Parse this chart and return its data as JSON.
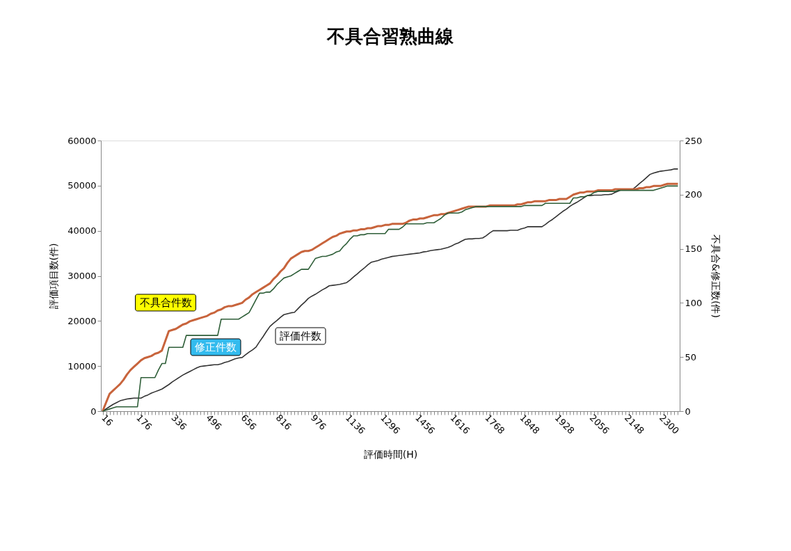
{
  "chart_data": {
    "type": "line",
    "title": "不具合習熟曲線",
    "xlabel": "評価時間(H)",
    "ylabel": "評価項目数(件)",
    "y2label": "不具合&修正数(件)",
    "categories": [
      "16",
      null,
      null,
      null,
      null,
      null,
      null,
      null,
      null,
      null,
      "176",
      null,
      null,
      null,
      null,
      null,
      null,
      null,
      null,
      null,
      "336",
      null,
      null,
      null,
      null,
      null,
      null,
      null,
      null,
      null,
      "496",
      null,
      null,
      null,
      null,
      null,
      null,
      null,
      null,
      null,
      "656",
      null,
      null,
      null,
      null,
      null,
      null,
      null,
      null,
      null,
      "816",
      null,
      null,
      null,
      null,
      null,
      null,
      null,
      null,
      null,
      "976",
      null,
      null,
      null,
      null,
      null,
      null,
      null,
      null,
      null,
      "1136",
      null,
      null,
      null,
      null,
      null,
      null,
      null,
      null,
      null,
      "1296",
      null,
      null,
      null,
      null,
      null,
      null,
      null,
      null,
      null,
      "1456",
      null,
      null,
      null,
      null,
      null,
      null,
      null,
      null,
      null,
      "1616",
      null,
      null,
      null,
      null,
      null,
      null,
      null,
      null,
      null,
      "1768",
      null,
      null,
      null,
      null,
      null,
      null,
      null,
      null,
      null,
      "1848",
      null,
      null,
      null,
      null,
      null,
      null,
      null,
      null,
      null,
      "1928",
      null,
      null,
      null,
      null,
      null,
      null,
      null,
      null,
      null,
      "2056",
      null,
      null,
      null,
      null,
      null,
      null,
      null,
      null,
      null,
      "2148",
      null,
      null,
      null,
      null,
      null,
      null,
      null,
      null,
      null,
      "2300",
      null,
      null,
      null,
      null,
      null
    ],
    "series": [
      {
        "name": "評価件数",
        "color": "#333333",
        "axis": "y",
        "values": [
          0,
          500,
          1000,
          1500,
          1900,
          2300,
          2500,
          2700,
          2800,
          2900,
          2900,
          2900,
          3300,
          3600,
          4000,
          4300,
          4600,
          4900,
          5400,
          5900,
          6500,
          7000,
          7500,
          8000,
          8400,
          8800,
          9200,
          9600,
          9900,
          10000,
          10100,
          10200,
          10300,
          10300,
          10500,
          10800,
          11000,
          11300,
          11600,
          11800,
          11900,
          12500,
          13100,
          13600,
          14200,
          15400,
          16500,
          17700,
          18800,
          19500,
          20100,
          20800,
          21400,
          21600,
          21800,
          21900,
          22700,
          23500,
          24200,
          25000,
          25500,
          25900,
          26400,
          26900,
          27300,
          27800,
          27900,
          28000,
          28100,
          28300,
          28500,
          29100,
          29800,
          30400,
          31100,
          31700,
          32400,
          33000,
          33200,
          33400,
          33700,
          33900,
          34100,
          34300,
          34400,
          34500,
          34600,
          34700,
          34800,
          34900,
          35000,
          35100,
          35300,
          35400,
          35600,
          35700,
          35800,
          35900,
          36100,
          36300,
          36600,
          37000,
          37300,
          37700,
          38100,
          38200,
          38200,
          38300,
          38300,
          38400,
          38900,
          39500,
          40000,
          40000,
          40000,
          40000,
          40000,
          40100,
          40100,
          40100,
          40400,
          40600,
          40900,
          40900,
          40900,
          40900,
          40900,
          41400,
          42000,
          42500,
          43100,
          43700,
          44300,
          44800,
          45400,
          45900,
          46300,
          46800,
          47300,
          47800,
          47800,
          47900,
          47900,
          47900,
          48000,
          48000,
          48100,
          48500,
          48800,
          49200,
          49200,
          49200,
          49200,
          49800,
          50500,
          51100,
          51800,
          52500,
          52800,
          53000,
          53200,
          53300,
          53400,
          53500,
          53700,
          53700
        ]
      },
      {
        "name": "不具合件数",
        "color": "#c8643c",
        "axis": "y2",
        "values": [
          0,
          8,
          16,
          19,
          22,
          25,
          29,
          34,
          38,
          41,
          44,
          47,
          49,
          50,
          51,
          53,
          54,
          56,
          65,
          74,
          75,
          76,
          78,
          80,
          81,
          83,
          84,
          85,
          86,
          87,
          88,
          90,
          91,
          93,
          94,
          96,
          97,
          97,
          98,
          99,
          100,
          103,
          105,
          108,
          110,
          112,
          114,
          116,
          118,
          122,
          125,
          129,
          132,
          137,
          141,
          143,
          145,
          147,
          148,
          148,
          149,
          151,
          153,
          155,
          157,
          159,
          161,
          162,
          164,
          165,
          166,
          166,
          167,
          167,
          168,
          168,
          169,
          169,
          170,
          171,
          171,
          172,
          172,
          173,
          173,
          173,
          173,
          174,
          176,
          177,
          177,
          178,
          178,
          179,
          180,
          181,
          181,
          182,
          182,
          183,
          184,
          185,
          186,
          187,
          188,
          189,
          189,
          189,
          189,
          189,
          189,
          190,
          190,
          190,
          190,
          190,
          190,
          190,
          190,
          191,
          191,
          192,
          193,
          193,
          194,
          194,
          194,
          194,
          195,
          195,
          195,
          196,
          196,
          196,
          198,
          200,
          201,
          202,
          202,
          203,
          203,
          203,
          204,
          204,
          204,
          204,
          204,
          205,
          205,
          205,
          205,
          205,
          205,
          205,
          206,
          206,
          207,
          207,
          208,
          208,
          208,
          209,
          210,
          210,
          210,
          210
        ]
      },
      {
        "name": "修正件数",
        "color": "#2e5e38",
        "axis": "y2",
        "values": [
          0,
          1,
          2,
          3,
          4,
          4,
          4,
          4,
          4,
          4,
          4,
          31,
          31,
          31,
          31,
          31,
          38,
          44,
          44,
          59,
          59,
          59,
          59,
          59,
          70,
          70,
          70,
          70,
          70,
          70,
          70,
          70,
          70,
          70,
          85,
          85,
          85,
          85,
          85,
          85,
          87,
          89,
          91,
          97,
          103,
          109,
          109,
          110,
          110,
          113,
          117,
          120,
          123,
          124,
          125,
          127,
          129,
          131,
          131,
          131,
          136,
          141,
          142,
          143,
          143,
          144,
          145,
          147,
          148,
          152,
          155,
          159,
          162,
          162,
          163,
          163,
          164,
          164,
          164,
          164,
          164,
          164,
          168,
          168,
          168,
          168,
          170,
          173,
          173,
          173,
          173,
          173,
          173,
          174,
          174,
          174,
          176,
          178,
          181,
          183,
          183,
          183,
          183,
          184,
          186,
          187,
          188,
          189,
          189,
          189,
          189,
          189,
          189,
          189,
          189,
          189,
          189,
          189,
          189,
          189,
          189,
          190,
          190,
          190,
          190,
          190,
          190,
          192,
          192,
          192,
          192,
          192,
          192,
          192,
          192,
          197,
          197,
          198,
          198,
          199,
          200,
          202,
          203,
          203,
          203,
          203,
          203,
          203,
          204,
          204,
          204,
          204,
          204,
          204,
          204,
          204,
          204,
          204,
          204,
          205,
          206,
          207,
          208,
          208,
          208,
          208
        ]
      }
    ],
    "ylim": [
      0,
      60000
    ],
    "yticks": [
      0,
      10000,
      20000,
      30000,
      40000,
      50000,
      60000
    ],
    "y2lim": [
      0,
      250
    ],
    "y2ticks": [
      0,
      50,
      100,
      150,
      200,
      250
    ]
  }
}
